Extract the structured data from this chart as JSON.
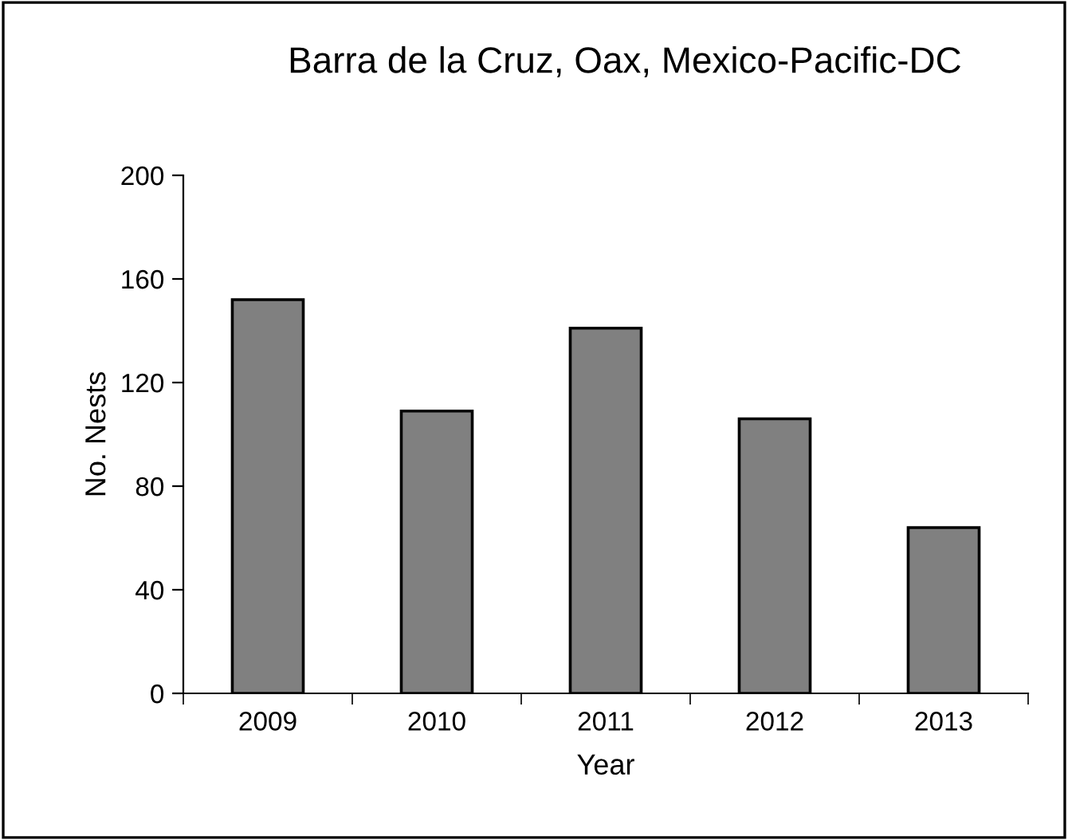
{
  "chart_data": {
    "type": "bar",
    "title": "Barra de la Cruz, Oax, Mexico-Pacific-DC",
    "xlabel": "Year",
    "ylabel": "No. Nests",
    "categories": [
      "2009",
      "2010",
      "2011",
      "2012",
      "2013"
    ],
    "values": [
      152,
      109,
      141,
      106,
      64
    ],
    "color": "#808080",
    "ylim": [
      0,
      200
    ],
    "yticks": [
      0,
      40,
      80,
      120,
      160,
      200
    ],
    "grid": false
  }
}
